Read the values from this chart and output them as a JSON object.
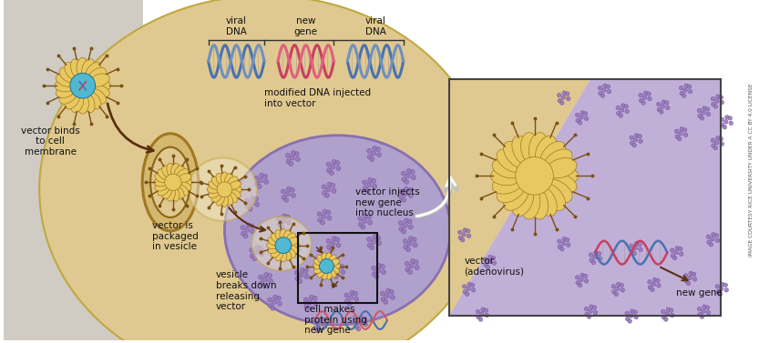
{
  "fig_w": 8.33,
  "fig_h": 3.77,
  "dpi": 100,
  "bg_grey": "#d0cbc3",
  "bg_tan": "#e0c990",
  "bg_white": "#ffffff",
  "bg_purple": "#b0a0cc",
  "bg_purple_light": "#c0b0d8",
  "text_color": "#111111",
  "arrow_dark": "#5a3010",
  "arrow_grey_big": "#c0c0c0",
  "dna_blue1": "#4a72b0",
  "dna_blue2": "#7090c0",
  "dna_pink1": "#c84060",
  "dna_pink2": "#e06080",
  "dna_purple": "#8060a0",
  "virus_body": "#e8c860",
  "virus_outline": "#a07820",
  "virus_spike": "#7a5010",
  "virus_inner": "#50b8d0",
  "virus_inner2": "#d8b870",
  "cluster_fill": "#9878b8",
  "cluster_edge": "#7050a0",
  "vesicle_fill": "#ede5c8",
  "vesicle_edge": "#c0a840",
  "membrane_fill": "#d8c080",
  "membrane_edge": "#9a7820",
  "inset_edge": "#444444",
  "credit": "IMAGE COURTESY RICE UNIVERSITY UNDER A CC BY 4.0 LICENSE",
  "lbl_viral_dna1": "viral\nDNA",
  "lbl_new_gene": "new\ngene",
  "lbl_viral_dna2": "viral\nDNA",
  "lbl_modified": "modified DNA injected\ninto vector",
  "lbl_binds": "vector binds\nto cell\nmembrane",
  "lbl_packaged": "vector is\npackaged\nin vesicle",
  "lbl_breaks": "vesicle\nbreaks down\nreleasing\nvector",
  "lbl_injects": "vector injects\nnew gene\ninto nucleus",
  "lbl_cell_makes": "cell makes\nprotein using\nnew gene",
  "lbl_adeno": "vector\n(adenovirus)",
  "lbl_new_gene2": "new gene"
}
